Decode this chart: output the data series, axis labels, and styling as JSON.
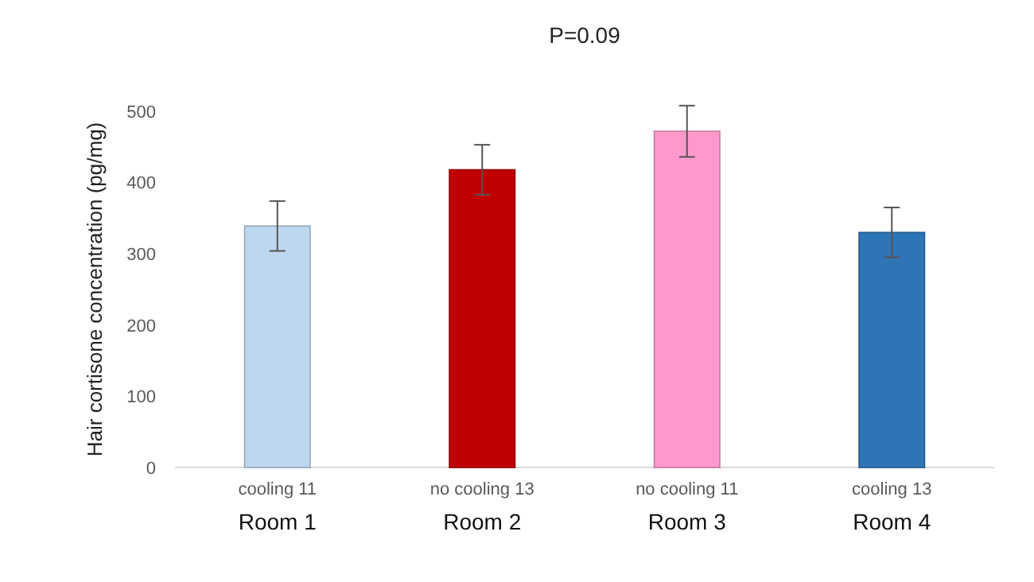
{
  "chart_data": {
    "type": "bar",
    "title": "P=0.09",
    "ylabel": "Hair cortisone concentration (pg/mg)",
    "categories": [
      "cooling 11\nRoom 1",
      "no cooling 13\nRoom 2",
      "no cooling 11\nRoom 3",
      "cooling 13\nRoom 4"
    ],
    "values": [
      339,
      418,
      472,
      330
    ],
    "colors": [
      "#bdd7ee",
      "#c00000",
      "#ff99cc",
      "#2e75b6"
    ],
    "errors": [
      35,
      35,
      36,
      35
    ],
    "ylim": [
      0,
      500
    ],
    "yticks": [
      0,
      100,
      200,
      300,
      400,
      500
    ],
    "grid": false
  }
}
